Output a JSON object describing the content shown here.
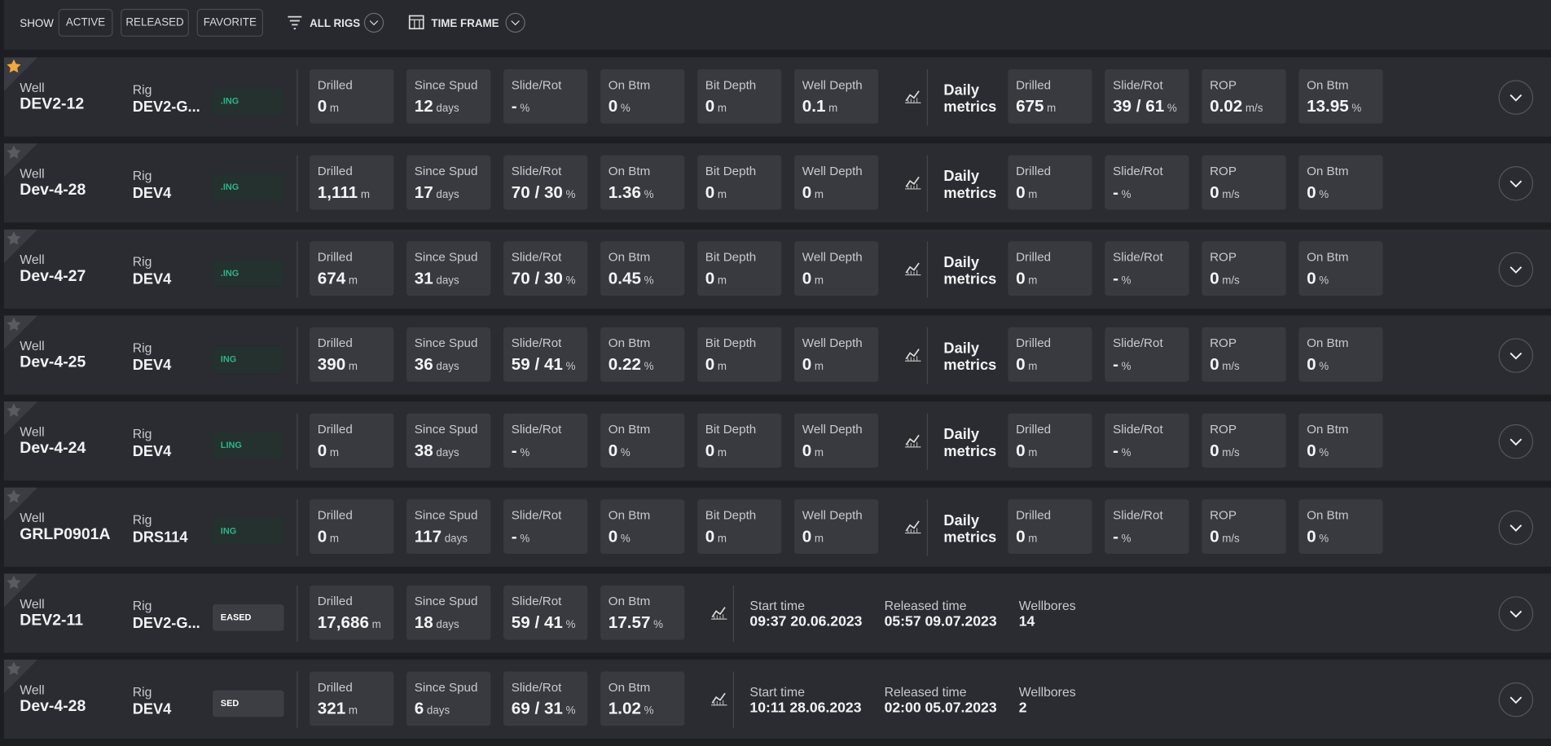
{
  "toolbar": {
    "show_label": "SHOW",
    "filters": [
      "ACTIVE",
      "RELEASED",
      "FAVORITE"
    ],
    "rigs": "ALL RIGS",
    "time_frame": "TIME FRAME"
  },
  "rows": [
    {
      "favorite": true,
      "well_label": "Well",
      "well": "DEV2-12",
      "rig_label": "Rig",
      "rig": "DEV2-G...",
      "status": ".ING",
      "metrics": [
        {
          "label": "Drilled",
          "value": "0",
          "unit": "m"
        },
        {
          "label": "Since Spud",
          "value": "12",
          "unit": "days"
        },
        {
          "label": "Slide/Rot",
          "value": "-",
          "unit": "%"
        },
        {
          "label": "On Btm",
          "value": "0",
          "unit": "%"
        },
        {
          "label": "Bit Depth",
          "value": "0",
          "unit": "m"
        },
        {
          "label": "Well Depth",
          "value": "0.1",
          "unit": "m"
        }
      ],
      "daily": {
        "label": "Daily metrics",
        "metrics": [
          {
            "label": "Drilled",
            "value": "675",
            "unit": "m"
          },
          {
            "label": "Slide/Rot",
            "value": "39 / 61",
            "unit": "%"
          },
          {
            "label": "ROP",
            "value": "0.02",
            "unit": "m/s"
          },
          {
            "label": "On Btm",
            "value": "13.95",
            "unit": "%"
          }
        ]
      }
    },
    {
      "favorite": false,
      "well_label": "Well",
      "well": "Dev-4-28",
      "rig_label": "Rig",
      "rig": "DEV4",
      "status": ".ING",
      "metrics": [
        {
          "label": "Drilled",
          "value": "1,111",
          "unit": "m"
        },
        {
          "label": "Since Spud",
          "value": "17",
          "unit": "days"
        },
        {
          "label": "Slide/Rot",
          "value": "70 / 30",
          "unit": "%"
        },
        {
          "label": "On Btm",
          "value": "1.36",
          "unit": "%"
        },
        {
          "label": "Bit Depth",
          "value": "0",
          "unit": "m"
        },
        {
          "label": "Well Depth",
          "value": "0",
          "unit": "m"
        }
      ],
      "daily": {
        "label": "Daily metrics",
        "metrics": [
          {
            "label": "Drilled",
            "value": "0",
            "unit": "m"
          },
          {
            "label": "Slide/Rot",
            "value": "-",
            "unit": "%"
          },
          {
            "label": "ROP",
            "value": "0",
            "unit": "m/s"
          },
          {
            "label": "On Btm",
            "value": "0",
            "unit": "%"
          }
        ]
      }
    },
    {
      "favorite": false,
      "well_label": "Well",
      "well": "Dev-4-27",
      "rig_label": "Rig",
      "rig": "DEV4",
      "status": ".ING",
      "metrics": [
        {
          "label": "Drilled",
          "value": "674",
          "unit": "m"
        },
        {
          "label": "Since Spud",
          "value": "31",
          "unit": "days"
        },
        {
          "label": "Slide/Rot",
          "value": "70 / 30",
          "unit": "%"
        },
        {
          "label": "On Btm",
          "value": "0.45",
          "unit": "%"
        },
        {
          "label": "Bit Depth",
          "value": "0",
          "unit": "m"
        },
        {
          "label": "Well Depth",
          "value": "0",
          "unit": "m"
        }
      ],
      "daily": {
        "label": "Daily metrics",
        "metrics": [
          {
            "label": "Drilled",
            "value": "0",
            "unit": "m"
          },
          {
            "label": "Slide/Rot",
            "value": "-",
            "unit": "%"
          },
          {
            "label": "ROP",
            "value": "0",
            "unit": "m/s"
          },
          {
            "label": "On Btm",
            "value": "0",
            "unit": "%"
          }
        ]
      }
    },
    {
      "favorite": false,
      "well_label": "Well",
      "well": "Dev-4-25",
      "rig_label": "Rig",
      "rig": "DEV4",
      "status": "ING",
      "metrics": [
        {
          "label": "Drilled",
          "value": "390",
          "unit": "m"
        },
        {
          "label": "Since Spud",
          "value": "36",
          "unit": "days"
        },
        {
          "label": "Slide/Rot",
          "value": "59 / 41",
          "unit": "%"
        },
        {
          "label": "On Btm",
          "value": "0.22",
          "unit": "%"
        },
        {
          "label": "Bit Depth",
          "value": "0",
          "unit": "m"
        },
        {
          "label": "Well Depth",
          "value": "0",
          "unit": "m"
        }
      ],
      "daily": {
        "label": "Daily metrics",
        "metrics": [
          {
            "label": "Drilled",
            "value": "0",
            "unit": "m"
          },
          {
            "label": "Slide/Rot",
            "value": "-",
            "unit": "%"
          },
          {
            "label": "ROP",
            "value": "0",
            "unit": "m/s"
          },
          {
            "label": "On Btm",
            "value": "0",
            "unit": "%"
          }
        ]
      }
    },
    {
      "favorite": false,
      "well_label": "Well",
      "well": "Dev-4-24",
      "rig_label": "Rig",
      "rig": "DEV4",
      "status": "LING",
      "metrics": [
        {
          "label": "Drilled",
          "value": "0",
          "unit": "m"
        },
        {
          "label": "Since Spud",
          "value": "38",
          "unit": "days"
        },
        {
          "label": "Slide/Rot",
          "value": "-",
          "unit": "%"
        },
        {
          "label": "On Btm",
          "value": "0",
          "unit": "%"
        },
        {
          "label": "Bit Depth",
          "value": "0",
          "unit": "m"
        },
        {
          "label": "Well Depth",
          "value": "0",
          "unit": "m"
        }
      ],
      "daily": {
        "label": "Daily metrics",
        "metrics": [
          {
            "label": "Drilled",
            "value": "0",
            "unit": "m"
          },
          {
            "label": "Slide/Rot",
            "value": "-",
            "unit": "%"
          },
          {
            "label": "ROP",
            "value": "0",
            "unit": "m/s"
          },
          {
            "label": "On Btm",
            "value": "0",
            "unit": "%"
          }
        ]
      }
    },
    {
      "favorite": false,
      "well_label": "Well",
      "well": "GRLP0901A",
      "rig_label": "Rig",
      "rig": "DRS114",
      "status": "ING",
      "metrics": [
        {
          "label": "Drilled",
          "value": "0",
          "unit": "m"
        },
        {
          "label": "Since Spud",
          "value": "117",
          "unit": "days"
        },
        {
          "label": "Slide/Rot",
          "value": "-",
          "unit": "%"
        },
        {
          "label": "On Btm",
          "value": "0",
          "unit": "%"
        },
        {
          "label": "Bit Depth",
          "value": "0",
          "unit": "m"
        },
        {
          "label": "Well Depth",
          "value": "0",
          "unit": "m"
        }
      ],
      "daily": {
        "label": "Daily metrics",
        "metrics": [
          {
            "label": "Drilled",
            "value": "0",
            "unit": "m"
          },
          {
            "label": "Slide/Rot",
            "value": "-",
            "unit": "%"
          },
          {
            "label": "ROP",
            "value": "0",
            "unit": "m/s"
          },
          {
            "label": "On Btm",
            "value": "0",
            "unit": "%"
          }
        ]
      }
    },
    {
      "favorite": false,
      "well_label": "Well",
      "well": "DEV2-11",
      "rig_label": "Rig",
      "rig": "DEV2-G...",
      "status": "EASED",
      "metrics": [
        {
          "label": "Drilled",
          "value": "17,686",
          "unit": "m"
        },
        {
          "label": "Since Spud",
          "value": "18",
          "unit": "days"
        },
        {
          "label": "Slide/Rot",
          "value": "59 / 41",
          "unit": "%"
        },
        {
          "label": "On Btm",
          "value": "17.57",
          "unit": "%"
        }
      ],
      "released": [
        {
          "label": "Start time",
          "value": "09:37 20.06.2023"
        },
        {
          "label": "Released time",
          "value": "05:57 09.07.2023"
        },
        {
          "label": "Wellbores",
          "value": "14"
        }
      ]
    },
    {
      "favorite": false,
      "well_label": "Well",
      "well": "Dev-4-28",
      "rig_label": "Rig",
      "rig": "DEV4",
      "status": "SED",
      "metrics": [
        {
          "label": "Drilled",
          "value": "321",
          "unit": "m"
        },
        {
          "label": "Since Spud",
          "value": "6",
          "unit": "days"
        },
        {
          "label": "Slide/Rot",
          "value": "69 / 31",
          "unit": "%"
        },
        {
          "label": "On Btm",
          "value": "1.02",
          "unit": "%"
        }
      ],
      "released": [
        {
          "label": "Start time",
          "value": "10:11 28.06.2023"
        },
        {
          "label": "Released time",
          "value": "02:00 05.07.2023"
        },
        {
          "label": "Wellbores",
          "value": "2"
        }
      ]
    }
  ]
}
